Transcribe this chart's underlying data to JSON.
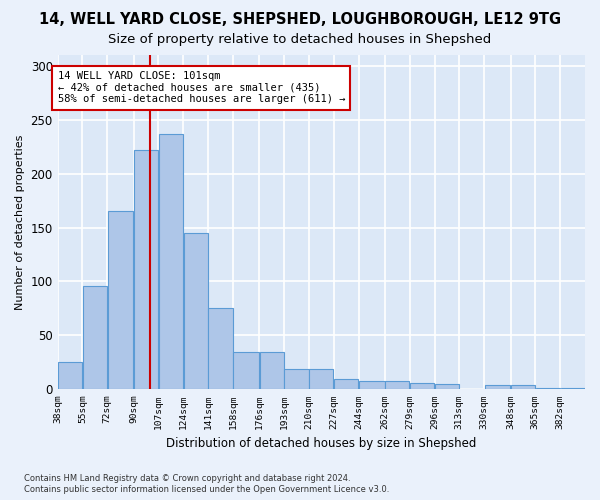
{
  "title1": "14, WELL YARD CLOSE, SHEPSHED, LOUGHBOROUGH, LE12 9TG",
  "title2": "Size of property relative to detached houses in Shepshed",
  "xlabel": "Distribution of detached houses by size in Shepshed",
  "ylabel": "Number of detached properties",
  "bar_values": [
    25,
    96,
    165,
    222,
    237,
    145,
    75,
    35,
    35,
    19,
    19,
    10,
    8,
    8,
    6,
    5,
    0,
    4,
    4,
    1,
    1
  ],
  "bar_labels": [
    "38sqm",
    "55sqm",
    "72sqm",
    "90sqm",
    "107sqm",
    "124sqm",
    "141sqm",
    "158sqm",
    "176sqm",
    "193sqm",
    "210sqm",
    "227sqm",
    "244sqm",
    "262sqm",
    "279sqm",
    "296sqm",
    "313sqm",
    "330sqm",
    "348sqm",
    "365sqm",
    "382sqm"
  ],
  "bar_color": "#aec6e8",
  "bar_edge_color": "#5b9bd5",
  "red_line_x": 101,
  "annotation_box_text": "14 WELL YARD CLOSE: 101sqm\n← 42% of detached houses are smaller (435)\n58% of semi-detached houses are larger (611) →",
  "red_line_color": "#cc0000",
  "ylim": [
    0,
    310
  ],
  "yticks": [
    0,
    50,
    100,
    150,
    200,
    250,
    300
  ],
  "footer_line1": "Contains HM Land Registry data © Crown copyright and database right 2024.",
  "footer_line2": "Contains public sector information licensed under the Open Government Licence v3.0.",
  "bg_color": "#dce8f7",
  "fig_bg_color": "#eaf1fb",
  "grid_color": "#ffffff",
  "title1_fontsize": 10.5,
  "title2_fontsize": 9.5,
  "bar_bins": [
    38,
    55,
    72,
    90,
    107,
    124,
    141,
    158,
    176,
    193,
    210,
    227,
    244,
    262,
    279,
    296,
    313,
    330,
    348,
    365,
    382,
    399
  ]
}
